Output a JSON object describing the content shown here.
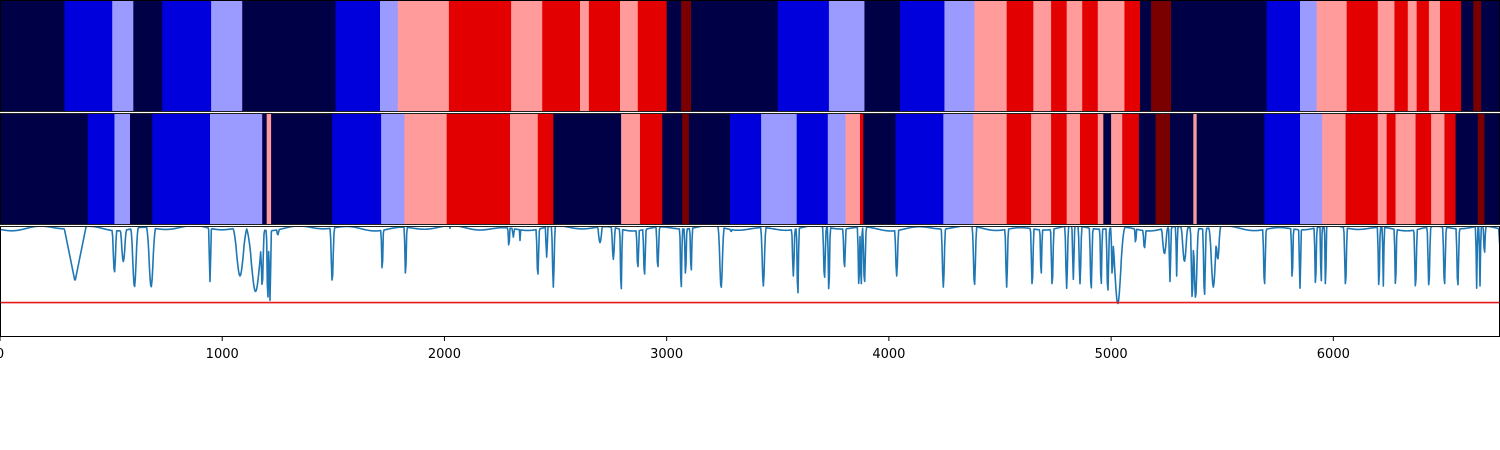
{
  "chart_data": [
    {
      "type": "heatmap",
      "panel": "top",
      "colormap": "seismic",
      "xlim": [
        0,
        6750
      ],
      "segments": [
        [
          0,
          290,
          "#000046"
        ],
        [
          290,
          505,
          "#0000dc"
        ],
        [
          505,
          600,
          "#9b9bff"
        ],
        [
          600,
          730,
          "#000046"
        ],
        [
          730,
          950,
          "#0000dc"
        ],
        [
          950,
          1090,
          "#9b9bff"
        ],
        [
          1090,
          1510,
          "#000046"
        ],
        [
          1510,
          1710,
          "#0000dc"
        ],
        [
          1710,
          1790,
          "#9b9bff"
        ],
        [
          1790,
          2020,
          "#ff9b9b"
        ],
        [
          2020,
          2300,
          "#e30000"
        ],
        [
          2300,
          2440,
          "#ff9b9b"
        ],
        [
          2440,
          2610,
          "#e30000"
        ],
        [
          2610,
          2650,
          "#ff9b9b"
        ],
        [
          2650,
          2790,
          "#e30000"
        ],
        [
          2790,
          2870,
          "#ff9b9b"
        ],
        [
          2870,
          3000,
          "#e30000"
        ],
        [
          3000,
          3065,
          "#000046"
        ],
        [
          3065,
          3110,
          "#7a0000"
        ],
        [
          3110,
          3500,
          "#000046"
        ],
        [
          3500,
          3730,
          "#0000dc"
        ],
        [
          3730,
          3890,
          "#9b9bff"
        ],
        [
          3890,
          4050,
          "#000046"
        ],
        [
          4050,
          4250,
          "#0000dc"
        ],
        [
          4250,
          4385,
          "#9b9bff"
        ],
        [
          4385,
          4530,
          "#ff9b9b"
        ],
        [
          4530,
          4650,
          "#e30000"
        ],
        [
          4650,
          4730,
          "#ff9b9b"
        ],
        [
          4730,
          4800,
          "#e30000"
        ],
        [
          4800,
          4870,
          "#ff9b9b"
        ],
        [
          4870,
          4940,
          "#e30000"
        ],
        [
          4940,
          5060,
          "#ff9b9b"
        ],
        [
          5060,
          5130,
          "#e30000"
        ],
        [
          5130,
          5180,
          "#000046"
        ],
        [
          5180,
          5270,
          "#7a0000"
        ],
        [
          5270,
          5700,
          "#000046"
        ],
        [
          5700,
          5850,
          "#0000dc"
        ],
        [
          5850,
          5925,
          "#9b9bff"
        ],
        [
          5925,
          6060,
          "#ff9b9b"
        ],
        [
          6060,
          6200,
          "#e30000"
        ],
        [
          6200,
          6275,
          "#ff9b9b"
        ],
        [
          6275,
          6335,
          "#e30000"
        ],
        [
          6335,
          6375,
          "#ff9b9b"
        ],
        [
          6375,
          6430,
          "#e30000"
        ],
        [
          6430,
          6480,
          "#ff9b9b"
        ],
        [
          6480,
          6575,
          "#e30000"
        ],
        [
          6575,
          6630,
          "#000046"
        ],
        [
          6630,
          6665,
          "#7a0000"
        ],
        [
          6665,
          6750,
          "#000046"
        ]
      ]
    },
    {
      "type": "heatmap",
      "panel": "middle",
      "colormap": "seismic",
      "xlim": [
        0,
        6750
      ],
      "segments": [
        [
          0,
          395,
          "#000046"
        ],
        [
          395,
          515,
          "#0000dc"
        ],
        [
          515,
          585,
          "#9b9bff"
        ],
        [
          585,
          685,
          "#000046"
        ],
        [
          685,
          945,
          "#0000dc"
        ],
        [
          945,
          1180,
          "#9b9bff"
        ],
        [
          1180,
          1200,
          "#000046"
        ],
        [
          1200,
          1220,
          "#ff9b9b"
        ],
        [
          1220,
          1495,
          "#000046"
        ],
        [
          1495,
          1715,
          "#0000dc"
        ],
        [
          1715,
          1820,
          "#9b9bff"
        ],
        [
          1820,
          2010,
          "#ff9b9b"
        ],
        [
          2010,
          2295,
          "#e30000"
        ],
        [
          2295,
          2420,
          "#ff9b9b"
        ],
        [
          2420,
          2490,
          "#e30000"
        ],
        [
          2490,
          2795,
          "#000046"
        ],
        [
          2795,
          2880,
          "#ff9b9b"
        ],
        [
          2880,
          2980,
          "#e30000"
        ],
        [
          2980,
          3070,
          "#000046"
        ],
        [
          3070,
          3100,
          "#7a0000"
        ],
        [
          3100,
          3285,
          "#000046"
        ],
        [
          3285,
          3425,
          "#0000dc"
        ],
        [
          3425,
          3585,
          "#9b9bff"
        ],
        [
          3585,
          3725,
          "#0000dc"
        ],
        [
          3725,
          3805,
          "#9b9bff"
        ],
        [
          3805,
          3870,
          "#ff9b9b"
        ],
        [
          3870,
          3885,
          "#e30000"
        ],
        [
          3885,
          4030,
          "#000046"
        ],
        [
          4030,
          4245,
          "#0000dc"
        ],
        [
          4245,
          4380,
          "#9b9bff"
        ],
        [
          4380,
          4530,
          "#ff9b9b"
        ],
        [
          4530,
          4640,
          "#e30000"
        ],
        [
          4640,
          4730,
          "#ff9b9b"
        ],
        [
          4730,
          4800,
          "#e30000"
        ],
        [
          4800,
          4860,
          "#ff9b9b"
        ],
        [
          4860,
          4940,
          "#e30000"
        ],
        [
          4940,
          4965,
          "#ff9b9b"
        ],
        [
          4965,
          5000,
          "#000046"
        ],
        [
          5000,
          5050,
          "#ff9b9b"
        ],
        [
          5050,
          5125,
          "#e30000"
        ],
        [
          5125,
          5200,
          "#000046"
        ],
        [
          5200,
          5265,
          "#7a0000"
        ],
        [
          5265,
          5370,
          "#000046"
        ],
        [
          5370,
          5385,
          "#ff9b9b"
        ],
        [
          5385,
          5690,
          "#000046"
        ],
        [
          5690,
          5850,
          "#0000dc"
        ],
        [
          5850,
          5950,
          "#9b9bff"
        ],
        [
          5950,
          5975,
          "#ff9b9b"
        ],
        [
          5975,
          6055,
          "#ff9b9b"
        ],
        [
          6055,
          6200,
          "#e30000"
        ],
        [
          6200,
          6240,
          "#ff9b9b"
        ],
        [
          6240,
          6280,
          "#e30000"
        ],
        [
          6280,
          6370,
          "#ff9b9b"
        ],
        [
          6370,
          6440,
          "#e30000"
        ],
        [
          6440,
          6500,
          "#ff9b9b"
        ],
        [
          6500,
          6550,
          "#e30000"
        ],
        [
          6550,
          6650,
          "#000046"
        ],
        [
          6650,
          6680,
          "#7a0000"
        ],
        [
          6680,
          6750,
          "#000046"
        ]
      ]
    },
    {
      "type": "line",
      "panel": "bottom",
      "xlim": [
        0,
        6750
      ],
      "ylim": [
        0,
        1
      ],
      "threshold": 0.31,
      "threshold_color": "#e41a1c",
      "series_color": "#1f77b4",
      "x_ticks": [
        "0",
        "1000",
        "2000",
        "3000",
        "4000",
        "5000",
        "6000"
      ],
      "x_tick_values": [
        0,
        1000,
        2000,
        3000,
        4000,
        5000,
        6000
      ],
      "dips": [
        [
          285,
          390,
          0.48,
          14
        ],
        [
          515,
          0.58,
          7
        ],
        [
          555,
          0.68,
          10
        ],
        [
          605,
          0.45,
          10
        ],
        [
          680,
          0.45,
          12
        ],
        [
          945,
          0.5,
          4
        ],
        [
          1080,
          0.55,
          20
        ],
        [
          1150,
          0.41,
          25
        ],
        [
          1180,
          0.46,
          6
        ],
        [
          1205,
          0.32,
          4
        ],
        [
          1215,
          0.33,
          4
        ],
        [
          1250,
          0.92,
          6
        ],
        [
          1495,
          0.5,
          6
        ],
        [
          1720,
          0.6,
          4
        ],
        [
          1825,
          0.55,
          4
        ],
        [
          2025,
          0.98,
          3
        ],
        [
          2290,
          0.82,
          4
        ],
        [
          2310,
          0.9,
          4
        ],
        [
          2340,
          0.87,
          3
        ],
        [
          2420,
          0.55,
          5
        ],
        [
          2460,
          0.72,
          4
        ],
        [
          2490,
          0.45,
          5
        ],
        [
          2700,
          0.85,
          8
        ],
        [
          2760,
          0.7,
          6
        ],
        [
          2795,
          0.4,
          4
        ],
        [
          2870,
          0.62,
          5
        ],
        [
          2900,
          0.55,
          5
        ],
        [
          2960,
          0.62,
          5
        ],
        [
          3065,
          0.42,
          4
        ],
        [
          3085,
          0.55,
          4
        ],
        [
          3110,
          0.58,
          4
        ],
        [
          3245,
          0.44,
          8
        ],
        [
          3290,
          0.95,
          6
        ],
        [
          3435,
          0.46,
          7
        ],
        [
          3570,
          0.55,
          5
        ],
        [
          3590,
          0.36,
          4
        ],
        [
          3710,
          0.52,
          5
        ],
        [
          3730,
          0.4,
          4
        ],
        [
          3800,
          0.62,
          5
        ],
        [
          3865,
          0.45,
          4
        ],
        [
          3875,
          0.42,
          3
        ],
        [
          3890,
          0.48,
          5
        ],
        [
          4035,
          0.55,
          6
        ],
        [
          4245,
          0.45,
          6
        ],
        [
          4385,
          0.46,
          6
        ],
        [
          4530,
          0.45,
          5
        ],
        [
          4645,
          0.46,
          5
        ],
        [
          4685,
          0.55,
          4
        ],
        [
          4735,
          0.46,
          5
        ],
        [
          4800,
          0.44,
          5
        ],
        [
          4830,
          0.52,
          4
        ],
        [
          4860,
          0.48,
          5
        ],
        [
          4910,
          0.42,
          5
        ],
        [
          4955,
          0.45,
          4
        ],
        [
          4985,
          0.4,
          5
        ],
        [
          5005,
          0.55,
          4
        ],
        [
          5030,
          0.3,
          18
        ],
        [
          5150,
          0.8,
          6
        ],
        [
          5110,
          0.85,
          4
        ],
        [
          5240,
          0.75,
          10
        ],
        [
          5265,
          0.5,
          4
        ],
        [
          5295,
          0.55,
          3
        ],
        [
          5330,
          0.68,
          10
        ],
        [
          5365,
          0.34,
          5
        ],
        [
          5380,
          0.35,
          8
        ],
        [
          5420,
          0.36,
          5
        ],
        [
          5460,
          0.45,
          12
        ],
        [
          5480,
          0.7,
          8
        ],
        [
          5690,
          0.46,
          5
        ],
        [
          5815,
          0.52,
          4
        ],
        [
          5850,
          0.44,
          4
        ],
        [
          5920,
          0.46,
          4
        ],
        [
          5945,
          0.45,
          3
        ],
        [
          5965,
          0.42,
          3
        ],
        [
          6055,
          0.46,
          5
        ],
        [
          6205,
          0.44,
          4
        ],
        [
          6225,
          0.46,
          3
        ],
        [
          6280,
          0.45,
          4
        ],
        [
          6370,
          0.44,
          5
        ],
        [
          6430,
          0.45,
          5
        ],
        [
          6500,
          0.46,
          5
        ],
        [
          6560,
          0.45,
          5
        ],
        [
          6645,
          0.44,
          3
        ],
        [
          6660,
          0.46,
          3
        ],
        [
          6680,
          0.75,
          4
        ],
        [
          6750,
          0.8,
          4
        ]
      ]
    }
  ]
}
